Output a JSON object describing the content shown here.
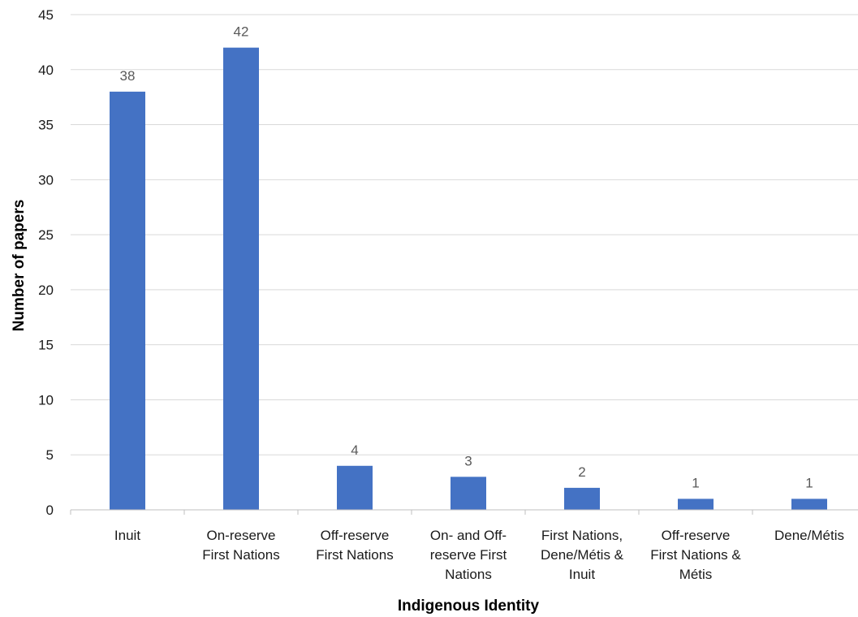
{
  "chart_data": {
    "type": "bar",
    "categories": [
      [
        "Inuit"
      ],
      [
        "On-reserve",
        "First Nations"
      ],
      [
        "Off-reserve",
        "First Nations"
      ],
      [
        "On- and Off-",
        "reserve First",
        "Nations"
      ],
      [
        "First Nations,",
        "Dene/Métis &",
        "Inuit"
      ],
      [
        "Off-reserve",
        "First Nations &",
        "Métis"
      ],
      [
        "Dene/Métis"
      ]
    ],
    "values": [
      38,
      42,
      4,
      3,
      2,
      1,
      1
    ],
    "data_labels": [
      "38",
      "42",
      "4",
      "3",
      "2",
      "1",
      "1"
    ],
    "xlabel": "Indigenous Identity",
    "ylabel": "Number of papers",
    "ylim": [
      0,
      45
    ],
    "yticks": [
      0,
      5,
      10,
      15,
      20,
      25,
      30,
      35,
      40,
      45
    ],
    "grid": "horizontal",
    "bar_color": "#4472c4",
    "legend": "none"
  }
}
